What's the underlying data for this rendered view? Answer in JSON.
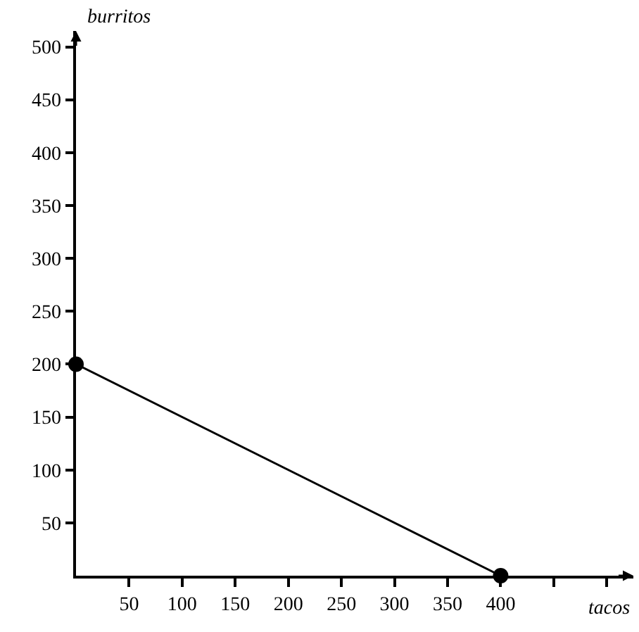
{
  "chart_data": {
    "type": "line",
    "xlabel": "tacos",
    "ylabel": "burritos",
    "x": [
      0,
      400
    ],
    "series": [
      {
        "color": "#000000",
        "values": [
          200,
          0
        ]
      }
    ],
    "marker": "circle",
    "line_style": "solid",
    "legend": false,
    "xlim": [
      0,
      525
    ],
    "ylim": [
      0,
      515
    ],
    "xticks": [
      50,
      100,
      150,
      200,
      250,
      300,
      350,
      400,
      {
        "value": 450,
        "label": null
      },
      {
        "value": 500,
        "label": null
      }
    ],
    "yticks": [
      50,
      100,
      150,
      200,
      250,
      300,
      350,
      400,
      450,
      500
    ]
  }
}
